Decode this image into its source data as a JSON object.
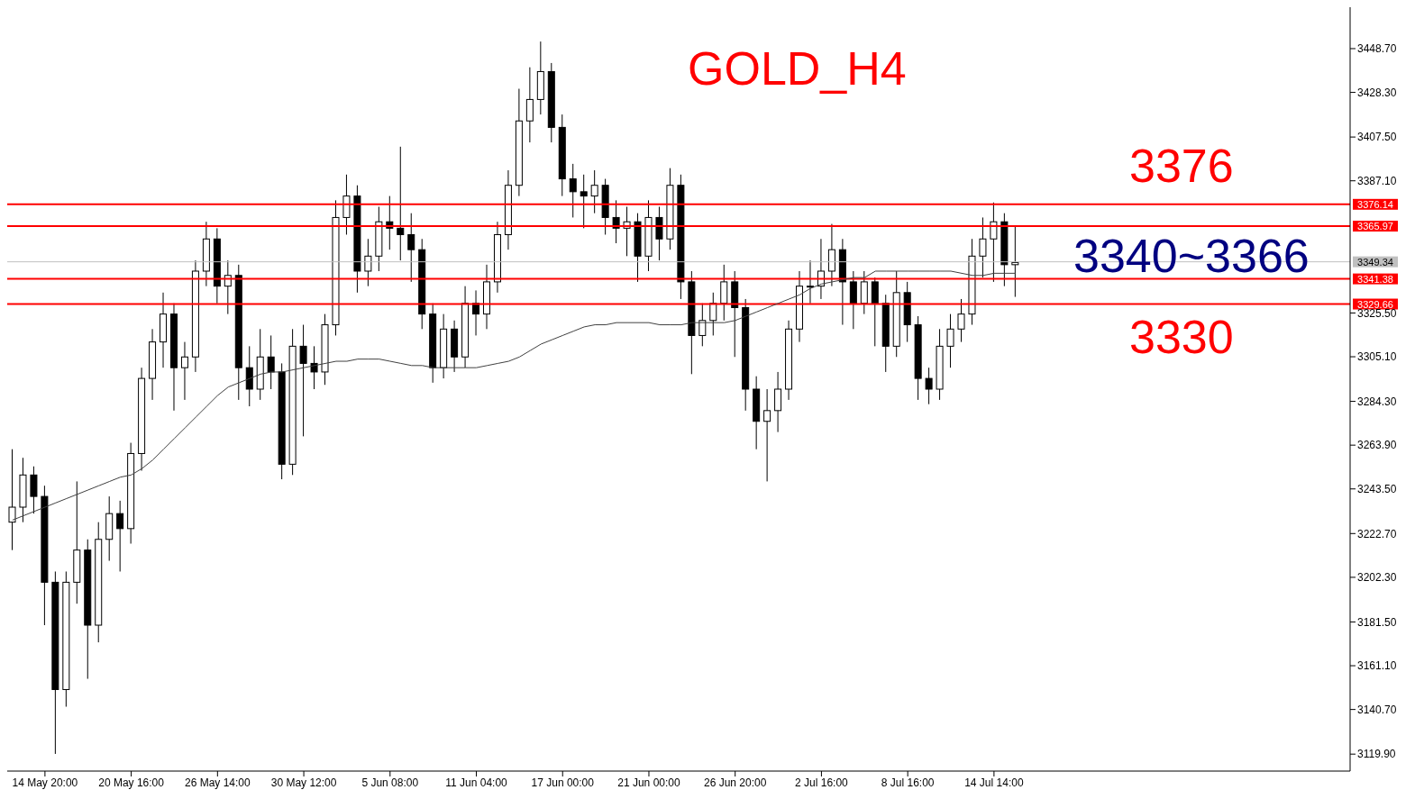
{
  "chart_data": {
    "type": "candlestick",
    "title": "GOLD_H4",
    "color": "#000000",
    "categories": [
      null,
      null,
      null,
      "14 May 20:00",
      null,
      null,
      null,
      null,
      null,
      null,
      null,
      "20 May 16:00",
      null,
      null,
      null,
      null,
      null,
      null,
      null,
      "26 May 14:00",
      null,
      null,
      null,
      null,
      null,
      null,
      null,
      "30 May 12:00",
      null,
      null,
      null,
      null,
      null,
      null,
      null,
      "5 Jun 08:00",
      null,
      null,
      null,
      null,
      null,
      null,
      null,
      "11 Jun 04:00",
      null,
      null,
      null,
      null,
      null,
      null,
      null,
      "17 Jun 00:00",
      null,
      null,
      null,
      null,
      null,
      null,
      null,
      "21 Jun 00:00",
      null,
      null,
      null,
      null,
      null,
      null,
      null,
      "26 Jun 20:00",
      null,
      null,
      null,
      null,
      null,
      null,
      null,
      "2 Jul 16:00",
      null,
      null,
      null,
      null,
      null,
      null,
      null,
      "8 Jul 16:00",
      null,
      null,
      null,
      null,
      null,
      null,
      null,
      "14 Jul 14:00",
      null,
      null
    ],
    "ohlc": [
      [
        3228,
        3262,
        3215,
        3235
      ],
      [
        3235,
        3258,
        3228,
        3250
      ],
      [
        3250,
        3254,
        3232,
        3240
      ],
      [
        3240,
        3245,
        3180,
        3200
      ],
      [
        3200,
        3205,
        3120,
        3150
      ],
      [
        3150,
        3205,
        3142,
        3200
      ],
      [
        3200,
        3247,
        3190,
        3215
      ],
      [
        3215,
        3220,
        3155,
        3180
      ],
      [
        3180,
        3228,
        3172,
        3220
      ],
      [
        3220,
        3240,
        3210,
        3232
      ],
      [
        3232,
        3238,
        3205,
        3225
      ],
      [
        3225,
        3265,
        3218,
        3260
      ],
      [
        3260,
        3300,
        3252,
        3295
      ],
      [
        3295,
        3318,
        3285,
        3312
      ],
      [
        3312,
        3335,
        3300,
        3325
      ],
      [
        3325,
        3330,
        3280,
        3300
      ],
      [
        3300,
        3312,
        3285,
        3305
      ],
      [
        3305,
        3350,
        3298,
        3345
      ],
      [
        3345,
        3368,
        3338,
        3360
      ],
      [
        3360,
        3365,
        3330,
        3338
      ],
      [
        3338,
        3350,
        3325,
        3343
      ],
      [
        3343,
        3348,
        3285,
        3300
      ],
      [
        3300,
        3310,
        3282,
        3290
      ],
      [
        3290,
        3318,
        3285,
        3305
      ],
      [
        3305,
        3315,
        3290,
        3298
      ],
      [
        3298,
        3302,
        3248,
        3255
      ],
      [
        3255,
        3318,
        3250,
        3310
      ],
      [
        3310,
        3320,
        3268,
        3302
      ],
      [
        3302,
        3310,
        3290,
        3298
      ],
      [
        3298,
        3325,
        3292,
        3320
      ],
      [
        3320,
        3378,
        3315,
        3370
      ],
      [
        3370,
        3390,
        3362,
        3380
      ],
      [
        3380,
        3385,
        3335,
        3345
      ],
      [
        3345,
        3360,
        3338,
        3352
      ],
      [
        3352,
        3375,
        3345,
        3368
      ],
      [
        3368,
        3380,
        3355,
        3365
      ],
      [
        3365,
        3403,
        3350,
        3362
      ],
      [
        3362,
        3372,
        3340,
        3355
      ],
      [
        3355,
        3360,
        3318,
        3325
      ],
      [
        3325,
        3330,
        3293,
        3300
      ],
      [
        3300,
        3325,
        3295,
        3318
      ],
      [
        3318,
        3322,
        3298,
        3305
      ],
      [
        3305,
        3338,
        3300,
        3330
      ],
      [
        3330,
        3336,
        3315,
        3325
      ],
      [
        3325,
        3348,
        3318,
        3340
      ],
      [
        3340,
        3368,
        3335,
        3362
      ],
      [
        3362,
        3392,
        3355,
        3385
      ],
      [
        3385,
        3430,
        3380,
        3415
      ],
      [
        3415,
        3440,
        3405,
        3425
      ],
      [
        3425,
        3452,
        3418,
        3438
      ],
      [
        3438,
        3442,
        3405,
        3412
      ],
      [
        3412,
        3418,
        3380,
        3388
      ],
      [
        3388,
        3395,
        3370,
        3382
      ],
      [
        3382,
        3390,
        3365,
        3380
      ],
      [
        3380,
        3392,
        3372,
        3385
      ],
      [
        3385,
        3388,
        3362,
        3370
      ],
      [
        3370,
        3378,
        3358,
        3365
      ],
      [
        3365,
        3375,
        3352,
        3368
      ],
      [
        3368,
        3372,
        3340,
        3352
      ],
      [
        3352,
        3378,
        3345,
        3370
      ],
      [
        3370,
        3375,
        3350,
        3360
      ],
      [
        3360,
        3393,
        3355,
        3385
      ],
      [
        3385,
        3390,
        3332,
        3340
      ],
      [
        3340,
        3345,
        3297,
        3315
      ],
      [
        3315,
        3330,
        3310,
        3322
      ],
      [
        3322,
        3335,
        3315,
        3330
      ],
      [
        3330,
        3348,
        3322,
        3340
      ],
      [
        3340,
        3345,
        3305,
        3328
      ],
      [
        3328,
        3332,
        3280,
        3290
      ],
      [
        3290,
        3296,
        3262,
        3275
      ],
      [
        3275,
        3290,
        3247,
        3280
      ],
      [
        3280,
        3298,
        3270,
        3290
      ],
      [
        3290,
        3322,
        3285,
        3318
      ],
      [
        3318,
        3345,
        3312,
        3338
      ],
      [
        3338,
        3350,
        3330,
        3338
      ],
      [
        3338,
        3360,
        3332,
        3345
      ],
      [
        3345,
        3367,
        3338,
        3355
      ],
      [
        3355,
        3360,
        3320,
        3340
      ],
      [
        3340,
        3345,
        3318,
        3330
      ],
      [
        3330,
        3345,
        3325,
        3340
      ],
      [
        3340,
        3342,
        3310,
        3330
      ],
      [
        3330,
        3334,
        3298,
        3310
      ],
      [
        3310,
        3345,
        3305,
        3335
      ],
      [
        3335,
        3340,
        3312,
        3320
      ],
      [
        3320,
        3324,
        3285,
        3295
      ],
      [
        3295,
        3300,
        3283,
        3290
      ],
      [
        3290,
        3318,
        3285,
        3310
      ],
      [
        3310,
        3325,
        3300,
        3318
      ],
      [
        3318,
        3332,
        3312,
        3325
      ],
      [
        3325,
        3360,
        3320,
        3352
      ],
      [
        3352,
        3370,
        3342,
        3360
      ],
      [
        3360,
        3377,
        3340,
        3368
      ],
      [
        3368,
        3372,
        3338,
        3348
      ],
      [
        3348,
        3366,
        3333,
        3349
      ]
    ],
    "series": [
      {
        "type": "line",
        "color": "#404040",
        "values": [
          3229,
          3231,
          3233,
          3235,
          3237,
          3239,
          3241,
          3243,
          3245,
          3247,
          3249,
          3250,
          3253,
          3257,
          3262,
          3267,
          3272,
          3277,
          3282,
          3287,
          3291,
          3293,
          3295,
          3297,
          3298,
          3298,
          3299,
          3300,
          3301,
          3302,
          3303,
          3303,
          3304,
          3304,
          3304,
          3303,
          3302,
          3301,
          3301,
          3300,
          3300,
          3300,
          3300,
          3300,
          3301,
          3302,
          3303,
          3305,
          3308,
          3311,
          3313,
          3315,
          3317,
          3319,
          3320,
          3320,
          3321,
          3321,
          3321,
          3321,
          3320,
          3320,
          3320,
          3321,
          3321,
          3321,
          3321,
          3322,
          3324,
          3326,
          3328,
          3330,
          3332,
          3334,
          3337,
          3339,
          3340,
          3341,
          3342,
          3342,
          3345,
          3345,
          3345,
          3345,
          3345,
          3345,
          3345,
          3345,
          3344,
          3343,
          3343,
          3344,
          3344,
          3344
        ]
      }
    ],
    "ylim": [
      3112,
      3468
    ],
    "yticks": [
      {
        "value": 3119.9,
        "label": "3119.90"
      },
      {
        "value": 3140.7,
        "label": "3140.70"
      },
      {
        "value": 3161.1,
        "label": "3161.10"
      },
      {
        "value": 3181.5,
        "label": "3181.50"
      },
      {
        "value": 3202.3,
        "label": "3202.30"
      },
      {
        "value": 3222.7,
        "label": "3222.70"
      },
      {
        "value": 3243.5,
        "label": "3243.50"
      },
      {
        "value": 3263.9,
        "label": "3263.90"
      },
      {
        "value": 3284.3,
        "label": "3284.30"
      },
      {
        "value": 3305.1,
        "label": "3305.10"
      },
      {
        "value": 3325.5,
        "label": "3325.50"
      },
      {
        "value": 3387.1,
        "label": "3387.10"
      },
      {
        "value": 3407.5,
        "label": "3407.50"
      },
      {
        "value": 3428.3,
        "label": "3428.30"
      },
      {
        "value": 3448.7,
        "label": "3448.70"
      }
    ],
    "ref_lines": [
      {
        "axis": "y",
        "value": 3376.14,
        "label": "3376.14",
        "color": "#ff0000"
      },
      {
        "axis": "y",
        "value": 3365.97,
        "label": "3365.97",
        "color": "#ff0000"
      },
      {
        "axis": "y",
        "value": 3349.34,
        "label": "3349.34",
        "color": "#c0c0c0"
      },
      {
        "axis": "y",
        "value": 3341.38,
        "label": "3341.38",
        "color": "#ff0000"
      },
      {
        "axis": "y",
        "value": 3329.66,
        "label": "3329.66",
        "color": "#ff0000"
      }
    ],
    "annotations": [
      "3376",
      "3340~3366",
      "3330"
    ],
    "grid": false
  }
}
